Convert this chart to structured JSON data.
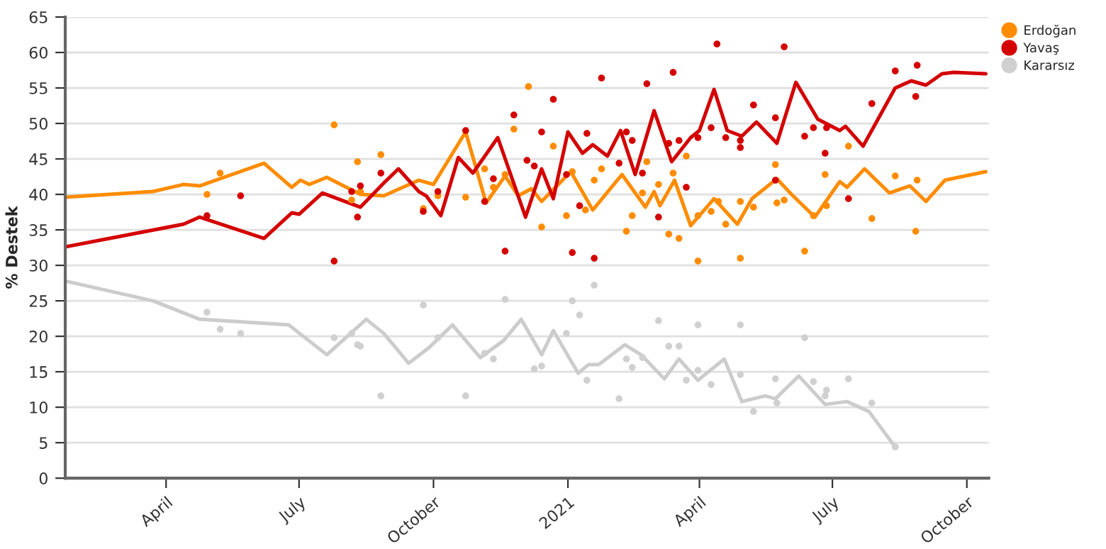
{
  "chart_data": {
    "type": "scatter",
    "ylabel": "% Destek",
    "xlim": [
      "2020-01-23",
      "2021-10-16"
    ],
    "xticks": [
      {
        "value": "2020-04-01",
        "label": "April"
      },
      {
        "value": "2020-07-01",
        "label": "July"
      },
      {
        "value": "2020-10-01",
        "label": "October"
      },
      {
        "value": "2021-01-01",
        "label": "2021"
      },
      {
        "value": "2021-04-01",
        "label": "April"
      },
      {
        "value": "2021-07-01",
        "label": "July"
      },
      {
        "value": "2021-10-01",
        "label": "October"
      }
    ],
    "ylim": [
      0,
      65
    ],
    "yticks": [
      0,
      5,
      10,
      15,
      20,
      25,
      30,
      35,
      40,
      45,
      50,
      55,
      60,
      65
    ],
    "grid": "y",
    "legend": "top right",
    "marker": "circle",
    "series": [
      {
        "type": "line",
        "marker": "none",
        "color": "#ff8c00",
        "x": [
          "2020-01-23",
          "2020-03-23",
          "2020-04-13",
          "2020-04-24",
          "2020-06-07",
          "2020-06-26",
          "2020-07-02",
          "2020-07-08",
          "2020-07-20",
          "2020-08-12",
          "2020-08-28",
          "2020-09-21",
          "2020-10-01",
          "2020-10-23",
          "2020-11-06",
          "2020-11-19",
          "2020-11-28",
          "2020-12-07",
          "2020-12-14",
          "2021-01-03",
          "2021-01-18",
          "2021-02-07",
          "2021-02-23",
          "2021-03-01",
          "2021-03-05",
          "2021-03-15",
          "2021-03-26",
          "2021-04-11",
          "2021-04-27",
          "2021-05-07",
          "2021-05-24",
          "2021-06-03",
          "2021-06-19",
          "2021-07-06",
          "2021-07-11",
          "2021-07-23",
          "2021-08-09",
          "2021-08-23",
          "2021-09-03",
          "2021-09-16",
          "2021-10-14"
        ],
        "values": [
          39.6,
          40.4,
          41.4,
          41.2,
          44.4,
          41,
          42,
          41.4,
          42.4,
          40,
          39.8,
          42,
          41.4,
          48.8,
          38.8,
          42.6,
          39.8,
          40.8,
          39,
          43.2,
          37.8,
          42.8,
          38.2,
          40.4,
          38.4,
          42,
          35.6,
          39.4,
          35.8,
          39.4,
          42.2,
          40,
          36.8,
          41.8,
          41,
          43.6,
          40.2,
          41.2,
          39,
          42,
          43.2
        ]
      },
      {
        "type": "line",
        "marker": "none",
        "color": "#d40000",
        "x": [
          "2020-01-23",
          "2020-04-13",
          "2020-04-24",
          "2020-06-07",
          "2020-06-26",
          "2020-07-01",
          "2020-07-17",
          "2020-08-12",
          "2020-08-28",
          "2020-09-07",
          "2020-09-21",
          "2020-09-26",
          "2020-10-06",
          "2020-10-18",
          "2020-10-28",
          "2020-11-14",
          "2020-12-03",
          "2020-12-14",
          "2020-12-22",
          "2021-01-01",
          "2021-01-11",
          "2021-01-18",
          "2021-01-28",
          "2021-02-06",
          "2021-02-16",
          "2021-03-01",
          "2021-03-13",
          "2021-03-26",
          "2021-04-01",
          "2021-04-11",
          "2021-04-20",
          "2021-04-30",
          "2021-05-10",
          "2021-05-24",
          "2021-06-06",
          "2021-06-21",
          "2021-07-06",
          "2021-07-10",
          "2021-07-22",
          "2021-08-13",
          "2021-08-24",
          "2021-09-03",
          "2021-09-14",
          "2021-09-22",
          "2021-10-14"
        ],
        "values": [
          32.6,
          35.8,
          36.8,
          33.8,
          37.4,
          37.2,
          40.2,
          38.2,
          41.6,
          43.6,
          40.4,
          39.8,
          37,
          45.2,
          43,
          48,
          36.8,
          43.6,
          39.4,
          48.8,
          45.8,
          47,
          45.4,
          49,
          42.8,
          51.8,
          44.6,
          48,
          49,
          54.8,
          49,
          48.2,
          50.2,
          47.2,
          55.8,
          50.6,
          49,
          49.6,
          46.8,
          55,
          56,
          55.4,
          57,
          57.2,
          57
        ]
      },
      {
        "type": "line",
        "marker": "none",
        "color": "#cccccc",
        "x": [
          "2020-01-23",
          "2020-03-23",
          "2020-04-24",
          "2020-06-24",
          "2020-07-20",
          "2020-08-16",
          "2020-08-28",
          "2020-09-14",
          "2020-09-28",
          "2020-10-14",
          "2020-11-02",
          "2020-11-18",
          "2020-11-30",
          "2020-12-14",
          "2020-12-22",
          "2021-01-08",
          "2021-01-15",
          "2021-01-22",
          "2021-02-09",
          "2021-02-20",
          "2021-03-08",
          "2021-03-18",
          "2021-03-31",
          "2021-04-18",
          "2021-04-30",
          "2021-05-16",
          "2021-05-23",
          "2021-06-08",
          "2021-06-26",
          "2021-07-11",
          "2021-07-26",
          "2021-08-13"
        ],
        "values": [
          27.8,
          25,
          22.4,
          21.6,
          17.4,
          22.4,
          20.4,
          16.2,
          18.4,
          21.6,
          17,
          19.4,
          22.4,
          17.4,
          20.8,
          14.8,
          16,
          16,
          18.8,
          17.4,
          14,
          16.8,
          13.8,
          16.8,
          10.8,
          11.6,
          11.2,
          14.4,
          10.4,
          10.8,
          9.4,
          4.4
        ]
      },
      {
        "name": "Erdoğan",
        "color": "#ff8c00",
        "x": [
          "2020-04-29",
          "2020-05-08",
          "2020-07-25",
          "2020-08-06",
          "2020-08-10",
          "2020-08-12",
          "2020-08-26",
          "2020-09-24",
          "2020-10-04",
          "2020-10-23",
          "2020-11-05",
          "2020-11-11",
          "2020-11-19",
          "2020-11-25",
          "2020-12-05",
          "2020-12-14",
          "2020-12-22",
          "2020-12-31",
          "2021-01-04",
          "2021-01-13",
          "2021-01-19",
          "2021-01-24",
          "2021-02-05",
          "2021-02-10",
          "2021-02-14",
          "2021-02-21",
          "2021-02-24",
          "2021-03-04",
          "2021-03-11",
          "2021-03-14",
          "2021-03-18",
          "2021-03-23",
          "2021-03-31",
          "2021-03-31",
          "2021-04-09",
          "2021-04-14",
          "2021-04-19",
          "2021-04-29",
          "2021-04-29",
          "2021-05-08",
          "2021-05-23",
          "2021-05-24",
          "2021-05-29",
          "2021-06-12",
          "2021-06-18",
          "2021-06-26",
          "2021-06-27",
          "2021-07-12",
          "2021-07-28",
          "2021-08-13",
          "2021-08-27",
          "2021-08-28"
        ],
        "values": [
          40,
          43,
          49.8,
          39.2,
          44.6,
          40.4,
          45.6,
          38,
          39.8,
          39.6,
          43.6,
          41,
          42.8,
          49.2,
          55.2,
          35.4,
          46.8,
          37,
          43.2,
          37.8,
          42,
          43.6,
          null,
          34.8,
          37,
          40.2,
          44.6,
          41.4,
          34.4,
          43,
          33.8,
          45.4,
          37,
          30.6,
          37.6,
          39,
          35.8,
          39,
          31,
          38.2,
          44.2,
          38.8,
          39.2,
          32,
          37,
          42.8,
          38.4,
          46.8,
          36.6,
          42.6,
          34.8,
          42
        ]
      },
      {
        "name": "Yavaş",
        "color": "#d40000",
        "x": [
          "2020-04-29",
          "2020-05-22",
          "2020-07-25",
          "2020-08-06",
          "2020-08-10",
          "2020-08-12",
          "2020-08-26",
          "2020-09-24",
          "2020-10-04",
          "2020-10-23",
          "2020-11-05",
          "2020-11-11",
          "2020-11-19",
          "2020-11-25",
          "2020-12-04",
          "2020-12-09",
          "2020-12-14",
          "2020-12-22",
          "2020-12-31",
          "2021-01-04",
          "2021-01-09",
          "2021-01-14",
          "2021-01-19",
          "2021-01-24",
          "2021-02-05",
          "2021-02-10",
          "2021-02-14",
          "2021-02-21",
          "2021-02-24",
          "2021-03-04",
          "2021-03-11",
          "2021-03-14",
          "2021-03-18",
          "2021-03-23",
          "2021-03-31",
          "2021-04-09",
          "2021-04-13",
          "2021-04-19",
          "2021-04-29",
          "2021-04-29",
          "2021-05-08",
          "2021-05-23",
          "2021-05-23",
          "2021-05-29",
          "2021-06-12",
          "2021-06-18",
          "2021-06-26",
          "2021-06-27",
          "2021-07-12",
          "2021-07-28",
          "2021-08-13",
          "2021-08-27",
          "2021-08-28"
        ],
        "values": [
          37,
          39.8,
          30.6,
          40.4,
          36.8,
          41.2,
          43,
          37.6,
          40.4,
          49,
          39,
          42.2,
          32,
          51.2,
          44.8,
          44,
          48.8,
          53.4,
          42.8,
          31.8,
          38.4,
          48.6,
          31,
          56.4,
          44.4,
          48.8,
          47.6,
          43,
          55.6,
          36.8,
          47.2,
          57.2,
          47.6,
          41,
          48,
          49.4,
          61.2,
          48,
          47.6,
          46.6,
          52.6,
          50.8,
          42,
          60.8,
          48.2,
          49.4,
          45.8,
          49.4,
          39.4,
          52.8,
          57.4,
          53.8,
          58.2
        ]
      },
      {
        "name": "Kararsız",
        "color": "#d0d0d0",
        "x": [
          "2020-04-29",
          "2020-05-08",
          "2020-05-22",
          "2020-07-25",
          "2020-08-06",
          "2020-08-10",
          "2020-08-12",
          "2020-08-26",
          "2020-09-24",
          "2020-10-04",
          "2020-10-23",
          "2020-11-05",
          "2020-11-11",
          "2020-11-19",
          "2020-12-09",
          "2020-12-14",
          "2020-12-31",
          "2021-01-04",
          "2021-01-09",
          "2021-01-14",
          "2021-01-19",
          "2021-02-05",
          "2021-02-10",
          "2021-02-14",
          "2021-02-21",
          "2021-03-04",
          "2021-03-11",
          "2021-03-18",
          "2021-03-23",
          "2021-03-31",
          "2021-03-31",
          "2021-04-09",
          "2021-04-29",
          "2021-04-29",
          "2021-05-08",
          "2021-05-23",
          "2021-05-24",
          "2021-06-12",
          "2021-06-18",
          "2021-06-26",
          "2021-06-27",
          "2021-07-12",
          "2021-07-28",
          "2021-08-13"
        ],
        "values": [
          23.4,
          21,
          20.4,
          19.8,
          20.4,
          18.8,
          18.6,
          11.6,
          24.4,
          19.8,
          11.6,
          17.6,
          16.8,
          25.2,
          15.4,
          15.8,
          20.4,
          25,
          23,
          13.8,
          27.2,
          11.2,
          16.8,
          15.6,
          17,
          22.2,
          18.6,
          18.6,
          13.8,
          21.6,
          15.2,
          13.2,
          21.6,
          14.6,
          9.4,
          14,
          10.6,
          19.8,
          13.6,
          11.6,
          12.4,
          14,
          10.6,
          4.4
        ]
      }
    ]
  }
}
